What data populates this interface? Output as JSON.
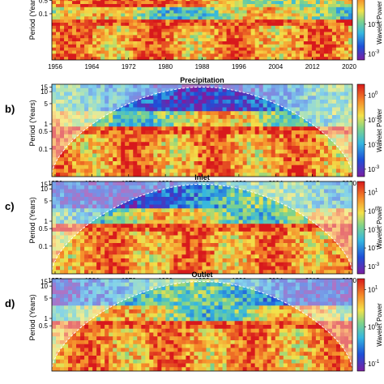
{
  "chart_data": [
    {
      "type": "heatmap",
      "panel_label": "",
      "title": "",
      "ylabel": "Period (Years)",
      "y_ticks": [
        "0.5",
        "0.1"
      ],
      "x_ticks": [
        "1956",
        "1964",
        "1972",
        "1980",
        "1988",
        "1996",
        "2004",
        "2012",
        "2020"
      ],
      "colorbar_label": "Wavelet Power",
      "colorbar_ticks": [
        {
          "base": "10",
          "exp": "-1"
        },
        {
          "base": "10",
          "exp": "-2"
        },
        {
          "base": "10",
          "exp": "-3"
        }
      ],
      "colormap": "jet",
      "cone_of_influence": false
    },
    {
      "type": "heatmap",
      "panel_label": "b)",
      "title": "Precipitation",
      "ylabel": "Period (Years)",
      "y_ticks": [
        "15",
        "10",
        "5",
        "1",
        "0.5",
        "0.1"
      ],
      "x_ticks": [
        "1956",
        "1964",
        "1972",
        "1980",
        "1988",
        "1996",
        "2004",
        "2012",
        "2020"
      ],
      "colorbar_label": "Wavelet Power",
      "colorbar_ticks": [
        {
          "base": "10",
          "exp": "0"
        },
        {
          "base": "10",
          "exp": "-1"
        },
        {
          "base": "10",
          "exp": "-2"
        },
        {
          "base": "10",
          "exp": "-3"
        }
      ],
      "colormap": "jet",
      "cone_of_influence": true
    },
    {
      "type": "heatmap",
      "panel_label": "c)",
      "title": "Inlet",
      "ylabel": "Period (Years)",
      "y_ticks": [
        "15",
        "10",
        "5",
        "1",
        "0.5",
        "0.1"
      ],
      "x_ticks": [
        "1956",
        "1964",
        "1972",
        "1980",
        "1988",
        "1996",
        "2004",
        "2012",
        "2020"
      ],
      "colorbar_label": "Wavelet Power",
      "colorbar_ticks": [
        {
          "base": "10",
          "exp": "1"
        },
        {
          "base": "10",
          "exp": "0"
        },
        {
          "base": "10",
          "exp": "-1"
        },
        {
          "base": "10",
          "exp": "-2"
        },
        {
          "base": "10",
          "exp": "-3"
        }
      ],
      "colormap": "jet",
      "cone_of_influence": true
    },
    {
      "type": "heatmap",
      "panel_label": "d)",
      "title": "Outlet",
      "ylabel": "Period (Years)",
      "y_ticks": [
        "15",
        "10",
        "5",
        "1",
        "0.5"
      ],
      "x_ticks": [],
      "colorbar_label": "Wavelet Power",
      "colorbar_ticks": [
        {
          "base": "10",
          "exp": "1"
        },
        {
          "base": "10",
          "exp": "0"
        },
        {
          "base": "10",
          "exp": "-1"
        }
      ],
      "colormap": "jet",
      "cone_of_influence": true
    }
  ]
}
